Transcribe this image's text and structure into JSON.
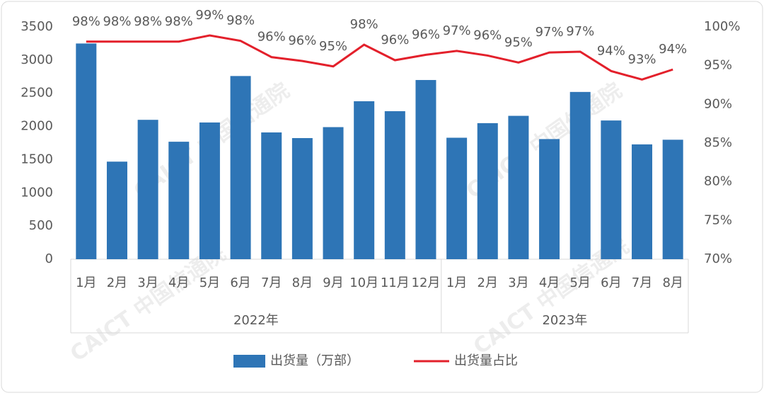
{
  "chart_data": {
    "type": "bar_line",
    "categories": [
      "1月",
      "2月",
      "3月",
      "4月",
      "5月",
      "6月",
      "7月",
      "8月",
      "9月",
      "10月",
      "11月",
      "12月",
      "1月",
      "2月",
      "3月",
      "4月",
      "5月",
      "6月",
      "7月",
      "8月"
    ],
    "groups": [
      {
        "name": "2022年",
        "span": 12
      },
      {
        "name": "2023年",
        "span": 8
      }
    ],
    "series": [
      {
        "name": "出货量（万部）",
        "color": "#2e75b6",
        "type": "bar",
        "values": [
          3250,
          1470,
          2100,
          1770,
          2060,
          2760,
          1910,
          1825,
          1990,
          2380,
          2230,
          2700,
          1830,
          2050,
          2160,
          1810,
          2520,
          2090,
          1730,
          1800
        ]
      },
      {
        "name": "出货量占比",
        "color": "#e3202b",
        "type": "line",
        "axis": "y2",
        "values": [
          98.1,
          98.1,
          98.1,
          98.1,
          98.9,
          98.2,
          96.1,
          95.6,
          94.9,
          97.7,
          95.7,
          96.4,
          96.9,
          96.3,
          95.4,
          96.7,
          96.8,
          94.3,
          93.2,
          94.5
        ],
        "value_labels": [
          "98%",
          "98%",
          "98%",
          "98%",
          "99%",
          "98%",
          "96%",
          "96%",
          "95%",
          "98%",
          "96%",
          "96%",
          "97%",
          "96%",
          "95%",
          "97%",
          "97%",
          "94%",
          "93%",
          "94%"
        ]
      }
    ],
    "ylim": [
      0,
      3500
    ],
    "yticks": [
      0,
      500,
      1000,
      1500,
      2000,
      2500,
      3000,
      3500
    ],
    "y2lim": [
      70,
      100
    ],
    "y2ticks": [
      {
        "value": 70,
        "label": "70%"
      },
      {
        "value": 75,
        "label": "75%"
      },
      {
        "value": 80,
        "label": "80%"
      },
      {
        "value": 85,
        "label": "85%"
      },
      {
        "value": 90,
        "label": "90%"
      },
      {
        "value": 95,
        "label": "95%"
      },
      {
        "value": 100,
        "label": "100%"
      }
    ],
    "watermark": "CAICT 中国信通院",
    "legend": "bottom"
  }
}
